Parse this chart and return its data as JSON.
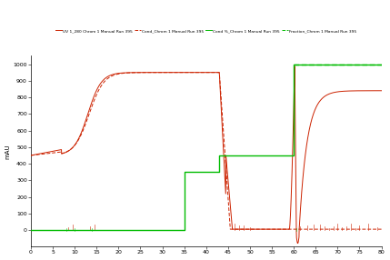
{
  "ylabel": "mAU",
  "xlim": [
    0,
    80
  ],
  "ylim": [
    -100,
    1050
  ],
  "yticks": [
    0,
    100,
    200,
    300,
    400,
    500,
    600,
    700,
    800,
    900,
    1000
  ],
  "xticks": [
    0,
    5,
    10,
    15,
    20,
    25,
    30,
    35,
    40,
    45,
    50,
    55,
    60,
    65,
    70,
    75,
    80
  ],
  "legend": [
    {
      "label": "UV 1_280 Chrom 1 Manual Run 395",
      "color": "#CC2200"
    },
    {
      "label": "Cond_Chrom 1 Manual Run 395",
      "color": "#CC2200"
    },
    {
      "label": "Cond %_Chrom 1 Manual Run 395",
      "color": "#00BB00"
    },
    {
      "label": "Fraction_Chrom 1 Manual Run 395",
      "color": "#00BB00"
    }
  ],
  "uv_color": "#CC2200",
  "cond_color": "#CC2200",
  "condpct_color": "#00BB00",
  "frac_color": "#00BB00",
  "bg_color": "#ffffff"
}
